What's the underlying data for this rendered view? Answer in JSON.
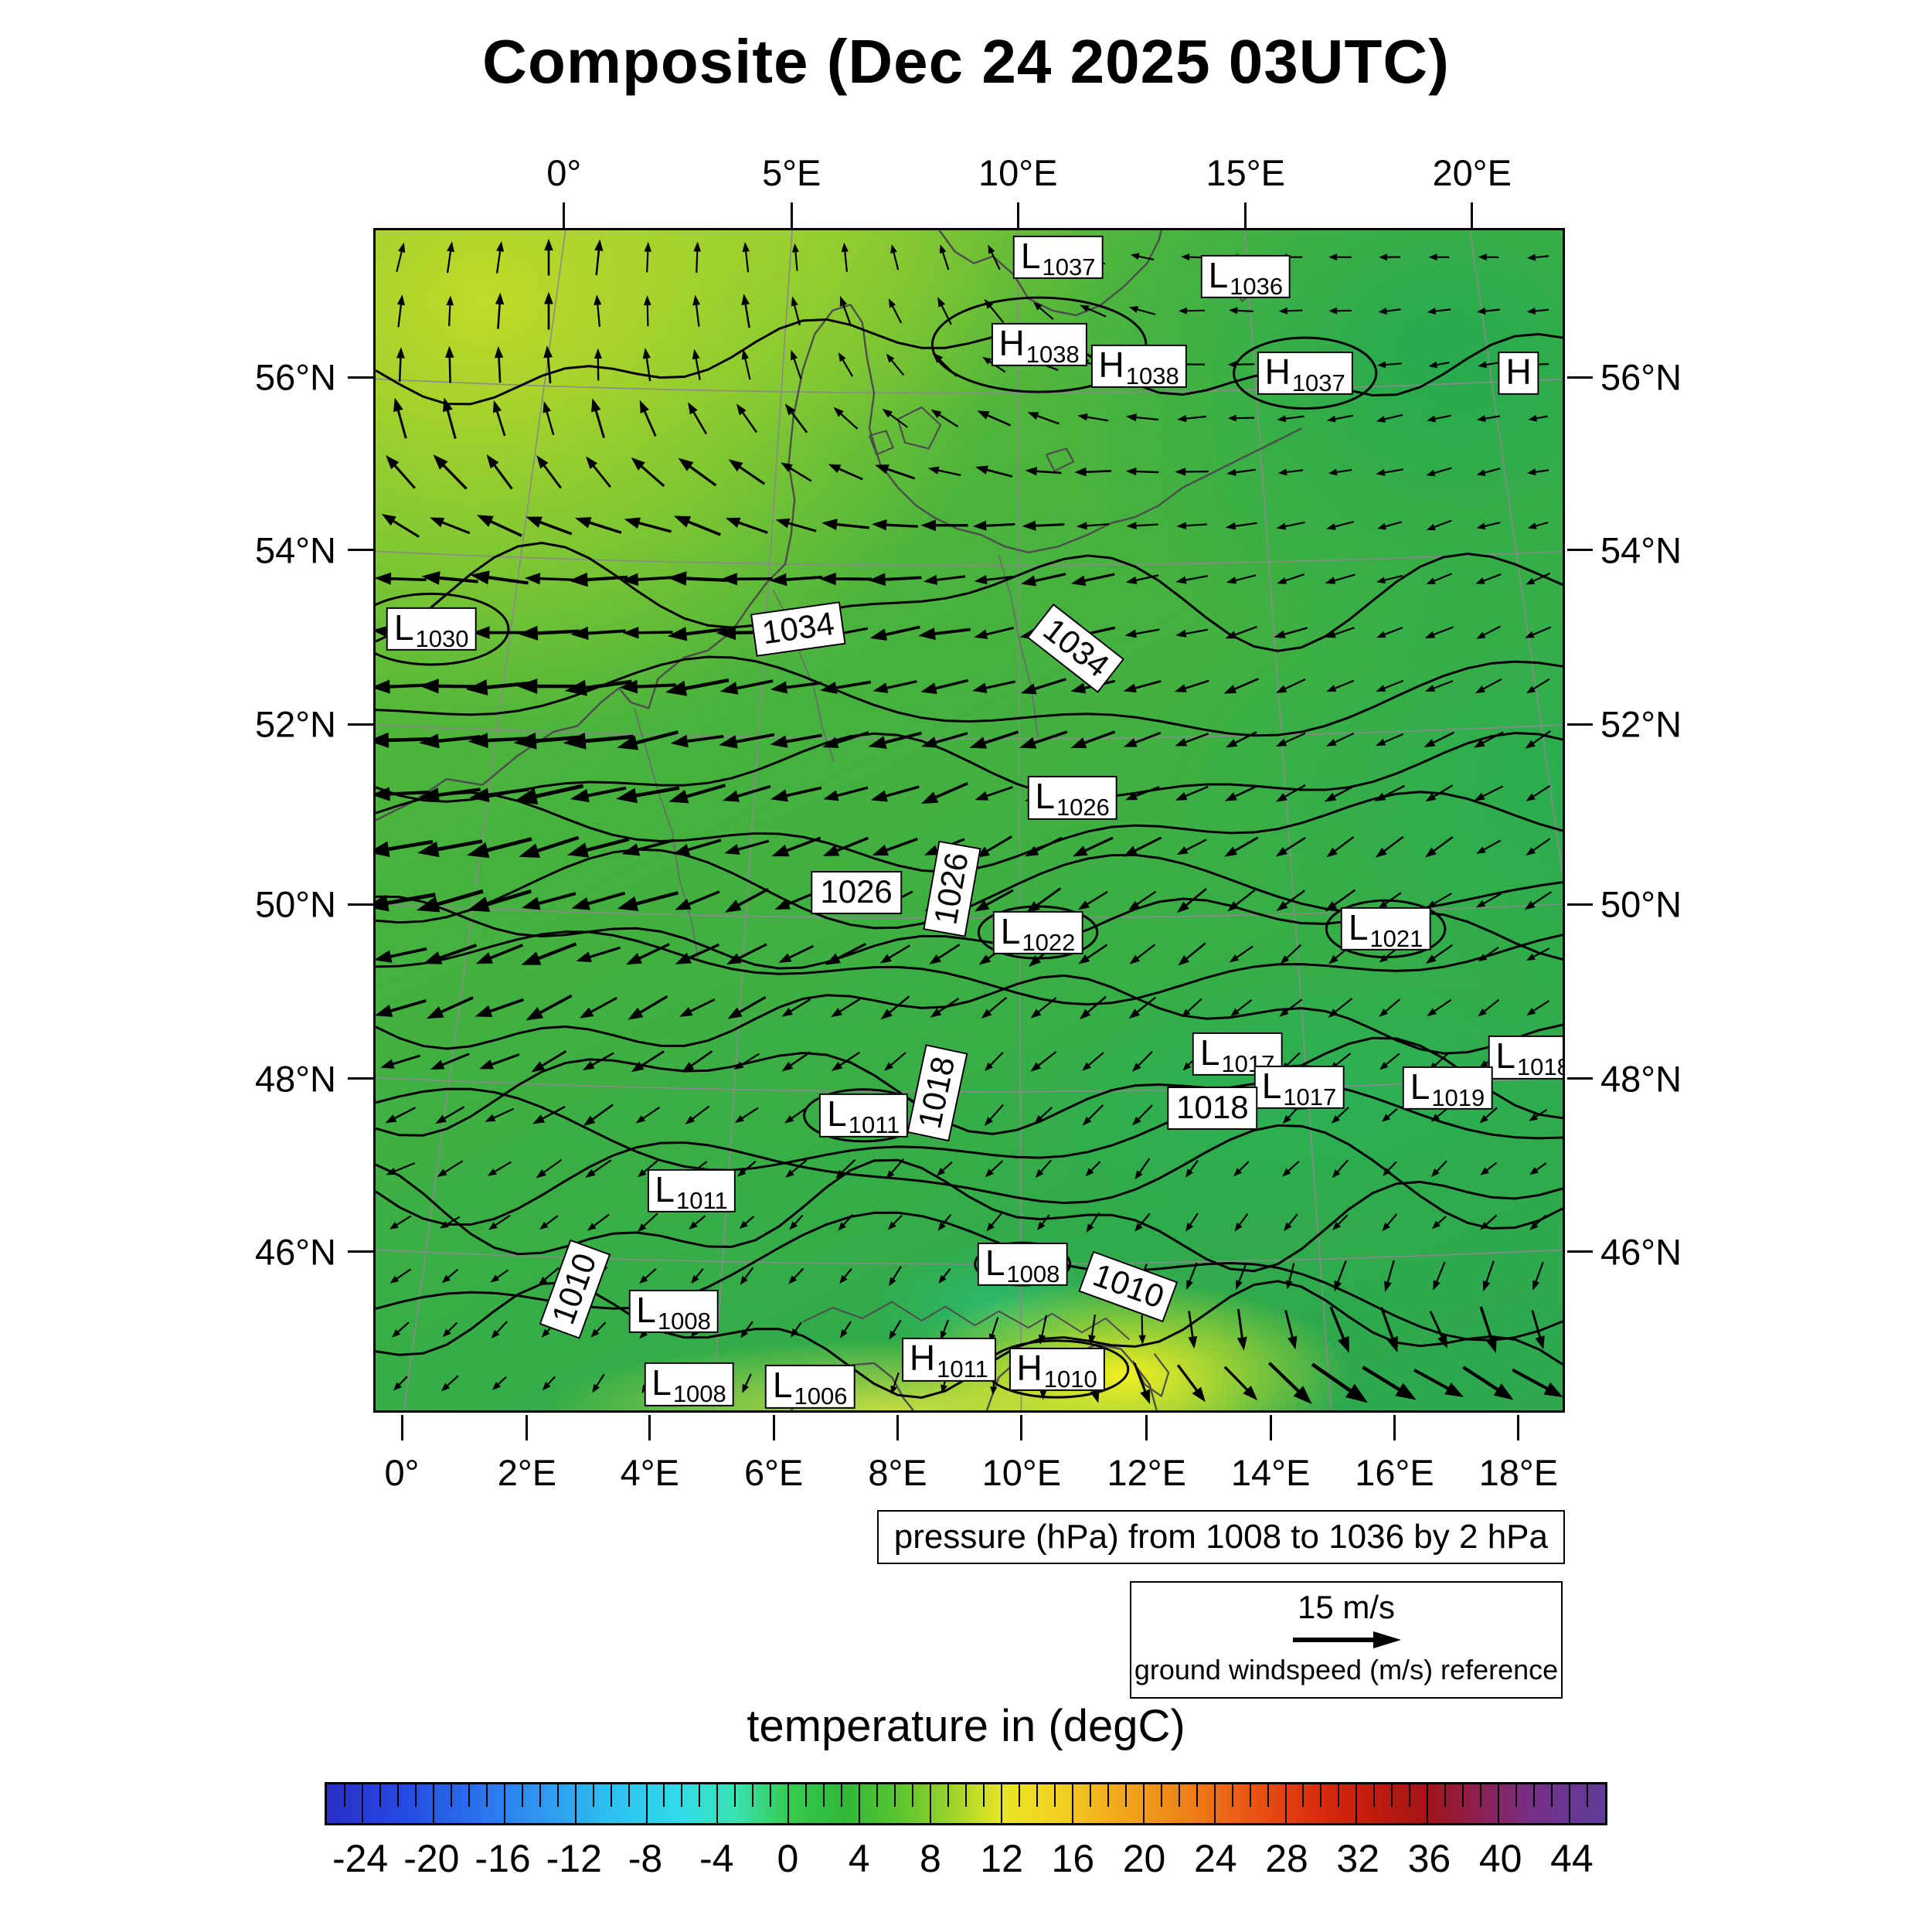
{
  "chart_data": {
    "type": "heatmap",
    "title": "Composite (Dec 24 2025 03UTC)",
    "axes": {
      "top_ticks": [
        {
          "label": "0°",
          "x": 16.0
        },
        {
          "label": "5°E",
          "x": 35.1
        },
        {
          "label": "10°E",
          "x": 54.1
        },
        {
          "label": "15°E",
          "x": 73.2
        },
        {
          "label": "20°E",
          "x": 92.2
        }
      ],
      "bottom_ticks": [
        {
          "label": "0°",
          "x": 2.4
        },
        {
          "label": "2°E",
          "x": 12.9
        },
        {
          "label": "4°E",
          "x": 23.2
        },
        {
          "label": "6°E",
          "x": 33.6
        },
        {
          "label": "8°E",
          "x": 44.0
        },
        {
          "label": "10°E",
          "x": 54.4
        },
        {
          "label": "12°E",
          "x": 64.9
        },
        {
          "label": "14°E",
          "x": 75.3
        },
        {
          "label": "16°E",
          "x": 85.7
        },
        {
          "label": "18°E",
          "x": 96.1
        }
      ],
      "lat_ticks": [
        {
          "label": "56°N",
          "y": 12.6
        },
        {
          "label": "54°N",
          "y": 27.2
        },
        {
          "label": "52°N",
          "y": 41.9
        },
        {
          "label": "50°N",
          "y": 57.1
        },
        {
          "label": "48°N",
          "y": 71.8
        },
        {
          "label": "46°N",
          "y": 86.4
        }
      ]
    },
    "graticule": {
      "meridians": [
        {
          "x_top": 16.0,
          "x_bottom": 2.4
        },
        {
          "x_top": 35.1,
          "x_bottom": 28.4
        },
        {
          "x_top": 54.1,
          "x_bottom": 54.4
        },
        {
          "x_top": 73.2,
          "x_bottom": 80.5
        },
        {
          "x_top": 92.2,
          "x_bottom": 106.5
        }
      ],
      "parallels_y": [
        12.6,
        27.2,
        41.9,
        57.1,
        71.8,
        86.4
      ]
    },
    "pressure": {
      "caption": "pressure (hPa) from 1008 to 1036 by 2 hPa",
      "units": "hPa",
      "from": 1008,
      "to": 1036,
      "by": 2,
      "contours": [
        {
          "level": 1036,
          "y": 11.0,
          "amp": 2.5
        },
        {
          "level": 1034,
          "y": 31.0,
          "amp": 3.0
        },
        {
          "level": 1032,
          "y": 40.0,
          "amp": 2.5
        },
        {
          "level": 1030,
          "y": 46.0,
          "amp": 2.2
        },
        {
          "level": 1028,
          "y": 51.0,
          "amp": 2.2
        },
        {
          "level": 1026,
          "y": 55.8,
          "amp": 2.2
        },
        {
          "level": 1024,
          "y": 59.5,
          "amp": 2.0
        },
        {
          "level": 1022,
          "y": 62.5,
          "amp": 2.0
        },
        {
          "level": 1020,
          "y": 66.5,
          "amp": 2.2
        },
        {
          "level": 1018,
          "y": 72.5,
          "amp": 2.8
        },
        {
          "level": 1016,
          "y": 76.5,
          "amp": 2.8
        },
        {
          "level": 1014,
          "y": 80.0,
          "amp": 3.0
        },
        {
          "level": 1012,
          "y": 83.5,
          "amp": 3.2
        },
        {
          "level": 1010,
          "y": 88.5,
          "amp": 3.6
        },
        {
          "level": 1008,
          "y": 94.0,
          "amp": 3.2
        }
      ],
      "centers": [
        {
          "type": "L",
          "value": "1037",
          "x": 57.5,
          "y": 2.3
        },
        {
          "type": "L",
          "value": "1036",
          "x": 73.3,
          "y": 3.9
        },
        {
          "type": "H",
          "value": "1038",
          "x": 55.9,
          "y": 9.7,
          "loop_rx": 9,
          "loop_ry": 4
        },
        {
          "type": "H",
          "value": "1038",
          "x": 64.3,
          "y": 11.5
        },
        {
          "type": "H",
          "value": "1037",
          "x": 78.3,
          "y": 12.1,
          "loop_rx": 6,
          "loop_ry": 3
        },
        {
          "type": "H",
          "value": "",
          "x": 96.3,
          "y": 12.1
        },
        {
          "type": "L",
          "value": "1030",
          "x": 4.7,
          "y": 33.8,
          "loop_rx": 6.5,
          "loop_ry": 3
        },
        {
          "type": "L",
          "value": "1026",
          "x": 58.7,
          "y": 48.1
        },
        {
          "type": "L",
          "value": "1022",
          "x": 55.8,
          "y": 59.5,
          "loop_rx": 5,
          "loop_ry": 2.2
        },
        {
          "type": "L",
          "value": "1021",
          "x": 85.1,
          "y": 59.2,
          "loop_rx": 5,
          "loop_ry": 2.4
        },
        {
          "type": "L",
          "value": "1017",
          "x": 72.6,
          "y": 69.8
        },
        {
          "type": "L",
          "value": "1017",
          "x": 77.8,
          "y": 72.6,
          "loop_rx": 3.5,
          "loop_ry": 1.8
        },
        {
          "type": "L",
          "value": "1018",
          "x": 97.5,
          "y": 70.1
        },
        {
          "type": "L",
          "value": "1019",
          "x": 90.3,
          "y": 72.7
        },
        {
          "type": "L",
          "value": "1011",
          "x": 41.1,
          "y": 75.0,
          "loop_rx": 5,
          "loop_ry": 2.2
        },
        {
          "type": "L",
          "value": "1011",
          "x": 26.6,
          "y": 81.4
        },
        {
          "type": "L",
          "value": "1008",
          "x": 54.5,
          "y": 87.6,
          "loop_rx": 4,
          "loop_ry": 1.8
        },
        {
          "type": "L",
          "value": "1008",
          "x": 25.1,
          "y": 91.6
        },
        {
          "type": "L",
          "value": "1008",
          "x": 26.4,
          "y": 97.8
        },
        {
          "type": "L",
          "value": "1006",
          "x": 36.6,
          "y": 98.0
        },
        {
          "type": "H",
          "value": "1011",
          "x": 48.3,
          "y": 95.7
        },
        {
          "type": "H",
          "value": "1010",
          "x": 57.4,
          "y": 96.5,
          "loop_rx": 6,
          "loop_ry": 2.4
        }
      ],
      "inline_labels": [
        {
          "text": "1034",
          "x": 35.6,
          "y": 33.8,
          "rot": -8
        },
        {
          "text": "1034",
          "x": 59.0,
          "y": 35.4,
          "rot": 38
        },
        {
          "text": "1026",
          "x": 40.5,
          "y": 56.1,
          "rot": 0
        },
        {
          "text": "1026",
          "x": 48.6,
          "y": 55.8,
          "rot": -80
        },
        {
          "text": "1018",
          "x": 47.3,
          "y": 73.1,
          "rot": -78
        },
        {
          "text": "1018",
          "x": 70.5,
          "y": 74.4,
          "rot": 0
        },
        {
          "text": "1010",
          "x": 16.8,
          "y": 89.7,
          "rot": -70
        },
        {
          "text": "1010",
          "x": 63.4,
          "y": 89.5,
          "rot": 20
        }
      ]
    },
    "wind": {
      "units": "m/s",
      "reference_speed": 15,
      "reference_label": "15 m/s",
      "caption": "ground windspeed (m/s) reference",
      "grid_dirs": [
        [
          75,
          85,
          90,
          100,
          170,
          185,
          180
        ],
        [
          95,
          95,
          115,
          150,
          180,
          190,
          186
        ],
        [
          172,
          178,
          182,
          186,
          190,
          196,
          202
        ],
        [
          184,
          188,
          192,
          196,
          201,
          207,
          212
        ],
        [
          192,
          197,
          205,
          211,
          216,
          216,
          211
        ],
        [
          200,
          209,
          215,
          221,
          226,
          221,
          214
        ],
        [
          211,
          219,
          226,
          231,
          236,
          228,
          219
        ],
        [
          224,
          234,
          246,
          262,
          312,
          348,
          354
        ]
      ],
      "grid_speeds": [
        [
          8,
          8,
          7,
          6,
          6,
          5,
          5
        ],
        [
          9,
          9,
          8,
          8,
          7,
          6,
          5
        ],
        [
          12,
          13,
          13,
          11,
          9,
          7,
          6
        ],
        [
          15,
          16,
          14,
          12,
          10,
          8,
          7
        ],
        [
          16,
          15,
          12,
          10,
          9,
          8,
          7
        ],
        [
          10,
          9,
          8,
          7,
          7,
          6,
          6
        ],
        [
          6,
          6,
          5,
          5,
          5,
          5,
          5
        ],
        [
          5,
          5,
          5,
          6,
          12,
          18,
          16
        ]
      ]
    },
    "temperature": {
      "label": "temperature in (degC)",
      "units": "degC",
      "scale_min": -26,
      "scale_max": 46,
      "minor_step": 1,
      "major_ticks": [
        -24,
        -20,
        -16,
        -12,
        -8,
        -4,
        0,
        4,
        8,
        12,
        16,
        20,
        24,
        28,
        32,
        36,
        40,
        44
      ],
      "palette": [
        {
          "t": -26,
          "c": "#2a2ec6"
        },
        {
          "t": -22,
          "c": "#2548e0"
        },
        {
          "t": -18,
          "c": "#2a6cec"
        },
        {
          "t": -14,
          "c": "#2e96f0"
        },
        {
          "t": -10,
          "c": "#2ec0f0"
        },
        {
          "t": -6,
          "c": "#30dce8"
        },
        {
          "t": -3,
          "c": "#3ae2b2"
        },
        {
          "t": 0,
          "c": "#35cc50"
        },
        {
          "t": 3,
          "c": "#2fb83a"
        },
        {
          "t": 6,
          "c": "#56c430"
        },
        {
          "t": 9,
          "c": "#98d22c"
        },
        {
          "t": 12,
          "c": "#e8e626"
        },
        {
          "t": 15,
          "c": "#f2d222"
        },
        {
          "t": 18,
          "c": "#f2ae1e"
        },
        {
          "t": 21,
          "c": "#f0901a"
        },
        {
          "t": 24,
          "c": "#ec6e16"
        },
        {
          "t": 27,
          "c": "#e64c12"
        },
        {
          "t": 30,
          "c": "#d82a0e"
        },
        {
          "t": 33,
          "c": "#c01c0c"
        },
        {
          "t": 36,
          "c": "#a21418"
        },
        {
          "t": 39,
          "c": "#8c2054"
        },
        {
          "t": 42,
          "c": "#763088"
        },
        {
          "t": 46,
          "c": "#5e3c98"
        }
      ]
    }
  }
}
